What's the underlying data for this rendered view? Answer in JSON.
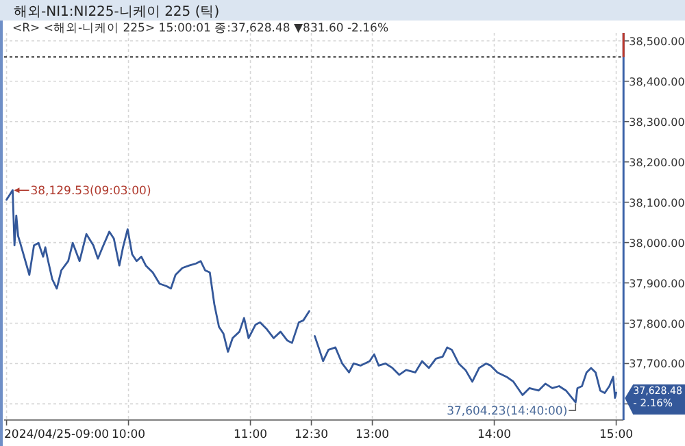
{
  "chart_data": [
    {
      "type": "line",
      "title": "해외-NI1:NI225-니케이 225 (틱)",
      "subtitle": "<R> <해외-니케이 225> 15:00:01 종:37,628.48 ▼831.60 -2.16%",
      "x": [
        9,
        9.05,
        9.065,
        9.08,
        9.095,
        9.112,
        9.187,
        9.225,
        9.262,
        9.3,
        9.318,
        9.337,
        9.375,
        9.412,
        9.449,
        9.506,
        9.543,
        9.599,
        9.655,
        9.712,
        9.749,
        9.787,
        9.843,
        9.88,
        9.925,
        9.955,
        9.993,
        10.03,
        10.067,
        10.105,
        10.142,
        10.199,
        10.255,
        10.311,
        10.348,
        10.386,
        10.442,
        10.498,
        10.554,
        10.592,
        10.629,
        10.667,
        10.704,
        10.742,
        10.779,
        10.816,
        10.854,
        10.91,
        10.948,
        10.985,
        11.041,
        11.079,
        11.135,
        11.191,
        11.247,
        11.303,
        11.341,
        11.397,
        11.434,
        11.483
      ],
      "series": [
        {
          "color": "#34589a",
          "values": [
            38106,
            38130,
            37993,
            38067,
            38016,
            37999,
            37920,
            37993,
            37999,
            37965,
            37988,
            37960,
            37909,
            37886,
            37931,
            37954,
            37999,
            37954,
            38021,
            37993,
            37960,
            37988,
            38027,
            38010,
            37943,
            37988,
            38033,
            37971,
            37954,
            37965,
            37943,
            37926,
            37898,
            37892,
            37886,
            37920,
            37937,
            37943,
            37948,
            37954,
            37931,
            37926,
            37847,
            37791,
            37774,
            37729,
            37763,
            37779,
            37813,
            37763,
            37796,
            37802,
            37785,
            37763,
            37779,
            37757,
            37751,
            37802,
            37807,
            37830
          ]
        }
      ],
      "xlim": [
        8.98,
        11.5
      ],
      "xticks": [
        {
          "value": 9,
          "label": "2024/04/25-09:00"
        },
        {
          "value": 10,
          "label": "10:00"
        },
        {
          "value": 11,
          "label": "11:00"
        }
      ],
      "ylim": [
        37560,
        38520
      ],
      "yticks": [
        37600,
        37700,
        37800,
        37900,
        38000,
        38100,
        38200,
        38300,
        38400,
        38500
      ],
      "tick_labels": "x",
      "grid": true,
      "ref_lines": [
        {
          "axis": "y",
          "value": 38460.08,
          "color": "#333333",
          "line_style": "dotted"
        }
      ],
      "annotations": [
        {
          "text": "38,129.53(09:03:00)",
          "x": 9.05,
          "y": 38129.53
        }
      ]
    },
    {
      "type": "line",
      "x": [
        12.528,
        12.566,
        12.596,
        12.64,
        12.697,
        12.753,
        12.809,
        12.846,
        12.903,
        12.978,
        13.015,
        13.052,
        13.109,
        13.165,
        13.221,
        13.277,
        13.352,
        13.408,
        13.464,
        13.521,
        13.577,
        13.614,
        13.652,
        13.708,
        13.764,
        13.82,
        13.876,
        13.933,
        13.97,
        14.026,
        14.101,
        14.157,
        14.232,
        14.288,
        14.363,
        14.419,
        14.476,
        14.532,
        14.588,
        14.667,
        14.682,
        14.719,
        14.757,
        14.794,
        14.831,
        14.869,
        14.906,
        14.944,
        14.975,
        14.99,
        15.0
      ],
      "series": [
        {
          "color": "#34589a",
          "values": [
            37768,
            37734,
            37706,
            37734,
            37740,
            37700,
            37678,
            37700,
            37695,
            37706,
            37723,
            37695,
            37700,
            37689,
            37672,
            37684,
            37678,
            37706,
            37689,
            37712,
            37717,
            37740,
            37734,
            37700,
            37684,
            37655,
            37689,
            37700,
            37695,
            37678,
            37667,
            37655,
            37622,
            37639,
            37633,
            37650,
            37639,
            37644,
            37633,
            37604,
            37639,
            37644,
            37678,
            37689,
            37678,
            37633,
            37627,
            37644,
            37667,
            37615,
            37628
          ]
        }
      ],
      "xlim": [
        12.5,
        15.06
      ],
      "xticks": [
        {
          "value": 12.5,
          "label": "12:30"
        },
        {
          "value": 13,
          "label": "13:00"
        },
        {
          "value": 14,
          "label": "14:00"
        },
        {
          "value": 15,
          "label": "15:00"
        }
      ],
      "ylim": [
        37560,
        38520
      ],
      "yticks": [
        {
          "value": 37600,
          "label": null
        },
        {
          "value": 37700,
          "label": "37,700.00"
        },
        {
          "value": 37800,
          "label": "37,800.00"
        },
        {
          "value": 37900,
          "label": "37,900.00"
        },
        {
          "value": 38000,
          "label": "38,000.00"
        },
        {
          "value": 38100,
          "label": "38,100.00"
        },
        {
          "value": 38200,
          "label": "38,200.00"
        },
        {
          "value": 38300,
          "label": "38,300.00"
        },
        {
          "value": 38400,
          "label": "38,400.00"
        },
        {
          "value": 38500,
          "label": "38,500.00"
        }
      ],
      "grid": true,
      "ref_lines": [
        {
          "axis": "y",
          "value": 38460.08,
          "color": "#333333",
          "line_style": "dotted"
        }
      ],
      "annotations": [
        {
          "text": "37,604.23(14:40:00)",
          "x": 14.667,
          "y": 37604.23
        },
        "37,628.48",
        "- 2.16%"
      ]
    }
  ]
}
